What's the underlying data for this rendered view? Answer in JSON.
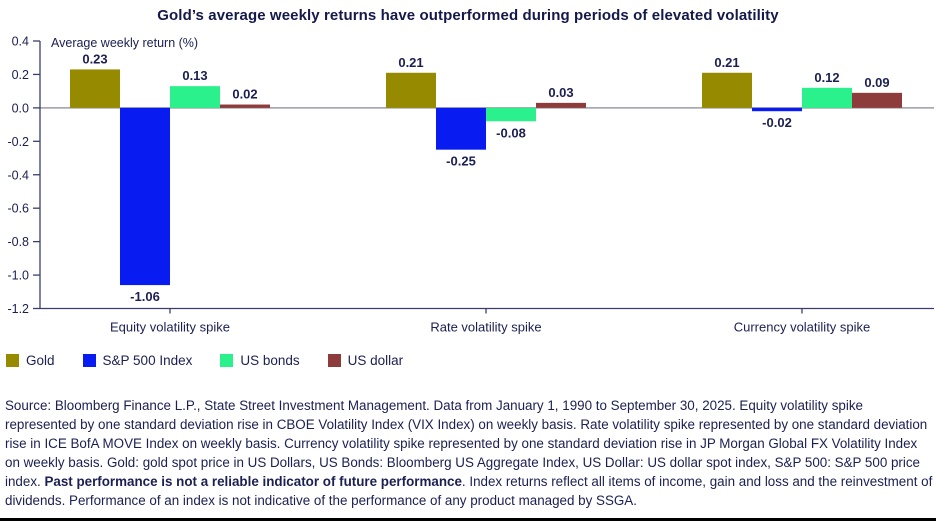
{
  "title": "Gold’s average weekly returns have outperformed during periods of elevated volatility",
  "chart_data": {
    "type": "bar",
    "axis_label": "Average weekly return (%)",
    "categories": [
      "Equity volatility spike",
      "Rate volatility spike",
      "Currency volatility spike"
    ],
    "series": [
      {
        "name": "Gold",
        "color": "#958a00",
        "values": [
          0.23,
          0.21,
          0.21
        ]
      },
      {
        "name": "S&P 500 Index",
        "color": "#081cf2",
        "values": [
          -1.06,
          -0.25,
          -0.02
        ]
      },
      {
        "name": "US bonds",
        "color": "#2bf18d",
        "values": [
          0.13,
          -0.08,
          0.12
        ]
      },
      {
        "name": "US dollar",
        "color": "#8e3b3b",
        "values": [
          0.02,
          0.03,
          0.09
        ]
      }
    ],
    "ylim": [
      -1.2,
      0.4
    ],
    "ytick_step": 0.2,
    "grid": false,
    "legend_position": "bottom",
    "value_labels": true
  },
  "colors": {
    "text": "#1b1f52",
    "axis_line": "#3a3e6e",
    "zero_line": "#9b9ca3"
  },
  "footnote": {
    "pre_bold": "Source: Bloomberg Finance L.P., State Street Investment Management. Data from January 1, 1990 to September 30, 2025. Equity volatility spike represented by one standard deviation rise in CBOE Volatility Index (VIX Index) on weekly basis. Rate volatility spike represented by one standard deviation rise in ICE BofA MOVE Index on weekly basis. Currency volatility spike represented by one standard deviation rise in JP Morgan Global FX Volatility Index on weekly basis. Gold: gold spot price in US Dollars, US Bonds: Bloomberg US Aggregate Index, US Dollar: US dollar spot index, S&P 500: S&P 500 price index. ",
    "bold": "Past performance is not a reliable indicator of future performance",
    "post_bold": ". Index returns reflect all items of income, gain and loss and the reinvestment of dividends. Performance of an index is not indicative of the performance of any product managed by SSGA."
  }
}
